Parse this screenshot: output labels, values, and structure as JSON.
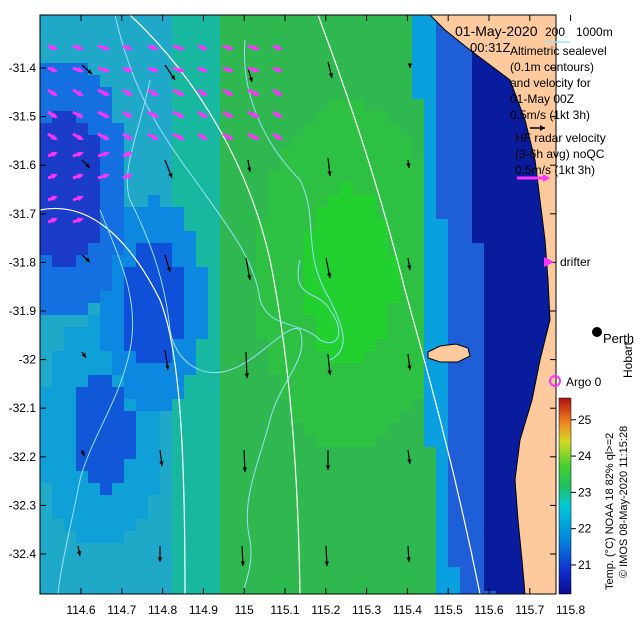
{
  "map": {
    "date": "01-May-2020",
    "time": "00:31Z",
    "contour_legend": {
      "label_200": "200",
      "label_1000": "1000m"
    },
    "altimetric_lines": [
      "Altimetric sealevel",
      "(0.1m contours)",
      "and velocity for",
      "01-May 00Z",
      "0.5m/s (1kt 3h)"
    ],
    "hf_radar_lines": [
      "HF radar velocity",
      "(3-6h avg) noQC",
      "0.5m/s (1kt 3h)"
    ],
    "drifter_label": "drifter",
    "argo_label": "Argo 0",
    "place_perth": "Perth",
    "place_hobart": "Hobart",
    "colorbar": {
      "title": "Temp. (°C) NOAA 18 82% ql>=2",
      "ticks": [
        "21",
        "22",
        "23",
        "24",
        "25"
      ],
      "min": 20.2,
      "max": 25.6
    },
    "credit": "© IMOS 08-May-2020 11:15:28",
    "y_ticks": [
      "-31.4",
      "-31.5",
      "-31.6",
      "-31.7",
      "-31.8",
      "-31.9",
      "-32",
      "-32.1",
      "-32.2",
      "-32.3",
      "-32.4"
    ],
    "x_ticks": [
      "114.6",
      "114.7",
      "114.8",
      "114.9",
      "115",
      "115.1",
      "115.2",
      "115.3",
      "115.4",
      "115.5",
      "115.6",
      "115.7",
      "115.8"
    ],
    "colors": {
      "land": "#fdca9e",
      "hf_vector": "#ff33ff",
      "contour_1000": "#ffffff",
      "contour_200": "#9adffa",
      "sea_warm": "#22c32a",
      "sea_cool": "#0a2ac8"
    }
  }
}
